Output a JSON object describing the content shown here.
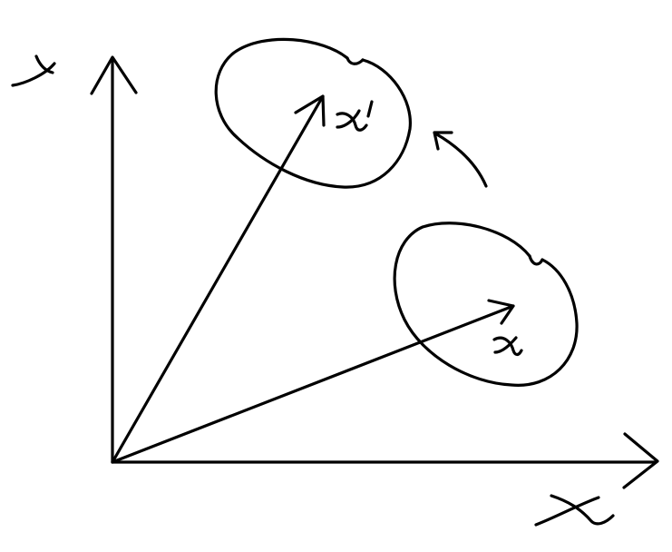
{
  "diagram": {
    "axis_labels": {
      "x": "x",
      "y": "y"
    },
    "vectors": [
      {
        "label": "x"
      },
      {
        "label": "x'"
      }
    ],
    "ink_color": "#000000",
    "background_color": "#ffffff"
  }
}
